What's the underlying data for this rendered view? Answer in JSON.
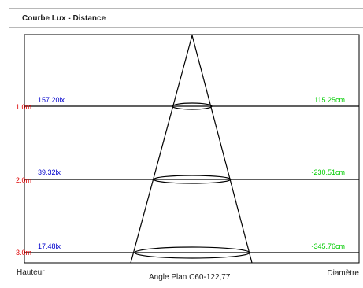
{
  "title": "Courbe Lux - Distance",
  "rows": [
    {
      "height": "1.0m",
      "lux": "157.20lx",
      "diameter": "115.25cm"
    },
    {
      "height": "2.0m",
      "lux": "39.32lx",
      "diameter": "-230.51cm"
    },
    {
      "height": "3.0m",
      "lux": "17.48lx",
      "diameter": "-345.76cm"
    }
  ],
  "footer": {
    "left": "Hauteur",
    "center": "Angle Plan C60-122,77",
    "right": "Diamètre"
  },
  "colors": {
    "lux": "#0000cc",
    "diameter": "#00cc00",
    "height": "#dd0000",
    "lines": "#000000"
  }
}
